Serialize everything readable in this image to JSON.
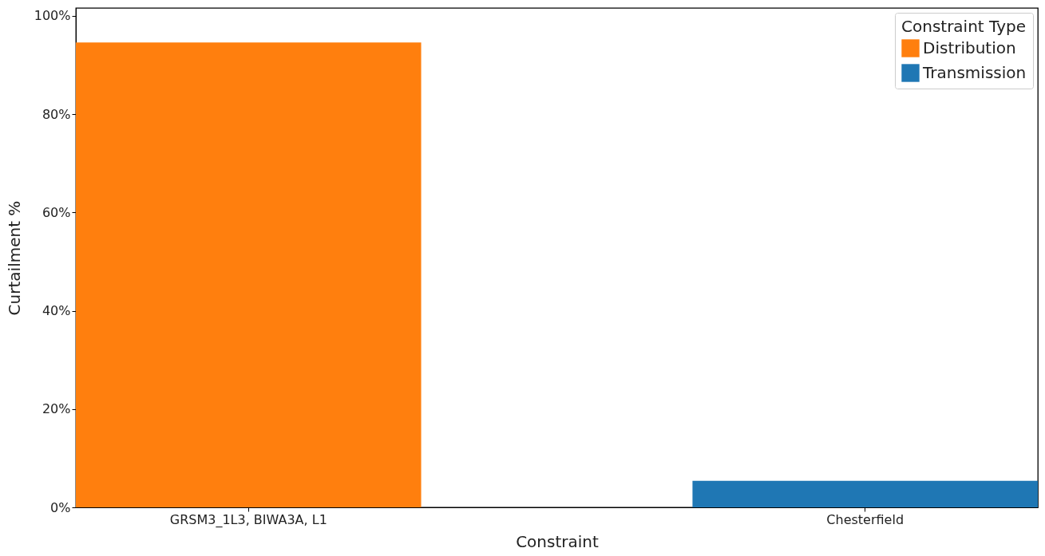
{
  "chart_data": {
    "type": "bar",
    "xlabel": "Constraint",
    "ylabel": "Curtailment %",
    "legend_title": "Constraint Type",
    "legend": "top right",
    "grid": false,
    "categories": [
      "GRSM3_1L3, BIWA3A, L1",
      "Chesterfield"
    ],
    "series": [
      {
        "name": "Distribution",
        "color": "#ff7f0e",
        "values": [
          94.6,
          null
        ]
      },
      {
        "name": "Transmission",
        "color": "#1f77b4",
        "values": [
          null,
          5.4
        ]
      }
    ],
    "ylim": [
      0,
      101.6
    ],
    "yticks": [
      {
        "value": 0,
        "label": "0%"
      },
      {
        "value": 20,
        "label": "20%"
      },
      {
        "value": 40,
        "label": "40%"
      },
      {
        "value": 60,
        "label": "60%"
      },
      {
        "value": 80,
        "label": "80%"
      },
      {
        "value": 100,
        "label": "100%"
      }
    ]
  }
}
